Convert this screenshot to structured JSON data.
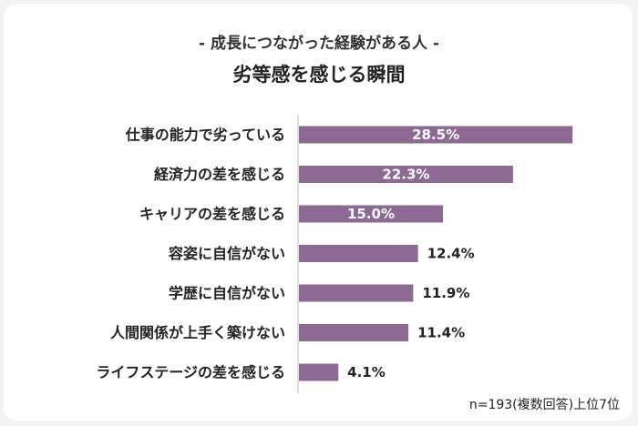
{
  "chart_data": {
    "type": "bar",
    "orientation": "horizontal",
    "subtitle": "- 成長につながった経験がある人 -",
    "title": "劣等感を感じる瞬間",
    "categories": [
      "仕事の能力で劣っている",
      "経済力の差を感じる",
      "キャリアの差を感じる",
      "容姿に自信がない",
      "学歴に自信がない",
      "人間関係が上手く築けない",
      "ライフステージの差を感じる"
    ],
    "values": [
      28.5,
      22.3,
      15.0,
      12.4,
      11.9,
      11.4,
      4.1
    ],
    "value_labels": [
      "28.5%",
      "22.3%",
      "15.0%",
      "12.4%",
      "11.9%",
      "11.4%",
      "4.1%"
    ],
    "xlim": [
      0,
      30
    ],
    "grid": false,
    "bar_color": "#8c6a93",
    "note": "n=193(複数回答)上位7位"
  }
}
